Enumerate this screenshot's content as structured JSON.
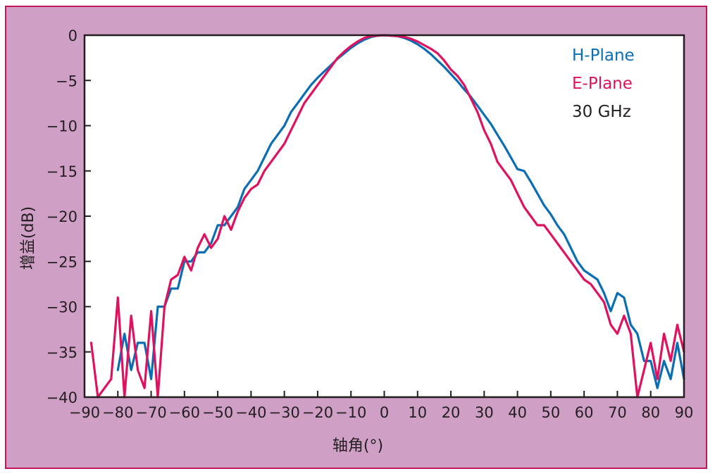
{
  "chart_data": {
    "type": "line",
    "title": "",
    "xlabel": "轴角(°)",
    "ylabel": "增益(dB)",
    "xlim": [
      -90,
      90
    ],
    "ylim": [
      -40,
      0
    ],
    "x_ticks": [
      -90,
      -80,
      -70,
      -60,
      -50,
      -40,
      -30,
      -20,
      -10,
      0,
      10,
      20,
      30,
      40,
      50,
      60,
      70,
      80,
      90
    ],
    "x_tick_labels": [
      "−90",
      "−80",
      "−70",
      "−60",
      "−50",
      "−40",
      "−30",
      "−20",
      "−10",
      "0",
      "10",
      "20",
      "30",
      "40",
      "50",
      "60",
      "70",
      "80",
      "90"
    ],
    "y_ticks": [
      0,
      -5,
      -10,
      -15,
      -20,
      -25,
      -30,
      -35,
      -40
    ],
    "y_tick_labels": [
      "0",
      "−5",
      "−10",
      "−15",
      "−20",
      "−25",
      "−30",
      "−35",
      "−40"
    ],
    "grid": false,
    "legend_position": "top-right",
    "annotation": "30 GHz",
    "series": [
      {
        "name": "H-Plane",
        "color": "#0a6eb4",
        "points": [
          [
            -80,
            -37
          ],
          [
            -78,
            -33
          ],
          [
            -76,
            -37
          ],
          [
            -74,
            -34
          ],
          [
            -72,
            -34
          ],
          [
            -70,
            -38
          ],
          [
            -68,
            -30
          ],
          [
            -66,
            -30
          ],
          [
            -64,
            -28
          ],
          [
            -62,
            -28
          ],
          [
            -60,
            -25
          ],
          [
            -58,
            -25
          ],
          [
            -56,
            -24
          ],
          [
            -54,
            -24
          ],
          [
            -52,
            -23
          ],
          [
            -50,
            -21
          ],
          [
            -48,
            -21
          ],
          [
            -46,
            -20
          ],
          [
            -44,
            -19
          ],
          [
            -42,
            -17
          ],
          [
            -40,
            -16
          ],
          [
            -38,
            -15
          ],
          [
            -36,
            -13.5
          ],
          [
            -34,
            -12
          ],
          [
            -32,
            -11
          ],
          [
            -30,
            -10
          ],
          [
            -28,
            -8.5
          ],
          [
            -26,
            -7.5
          ],
          [
            -24,
            -6.5
          ],
          [
            -22,
            -5.5
          ],
          [
            -20,
            -4.7
          ],
          [
            -18,
            -4
          ],
          [
            -16,
            -3.3
          ],
          [
            -14,
            -2.6
          ],
          [
            -12,
            -2
          ],
          [
            -10,
            -1.4
          ],
          [
            -8,
            -0.9
          ],
          [
            -6,
            -0.5
          ],
          [
            -4,
            -0.2
          ],
          [
            -2,
            -0.05
          ],
          [
            0,
            0
          ],
          [
            2,
            -0.05
          ],
          [
            4,
            -0.1
          ],
          [
            6,
            -0.3
          ],
          [
            8,
            -0.6
          ],
          [
            10,
            -1
          ],
          [
            12,
            -1.5
          ],
          [
            14,
            -2.1
          ],
          [
            16,
            -2.8
          ],
          [
            18,
            -3.5
          ],
          [
            20,
            -4.3
          ],
          [
            22,
            -5.1
          ],
          [
            24,
            -6
          ],
          [
            26,
            -6.8
          ],
          [
            28,
            -7.8
          ],
          [
            30,
            -8.8
          ],
          [
            32,
            -9.8
          ],
          [
            34,
            -11
          ],
          [
            36,
            -12.2
          ],
          [
            38,
            -13.5
          ],
          [
            40,
            -14.8
          ],
          [
            42,
            -15
          ],
          [
            44,
            -16.2
          ],
          [
            46,
            -17.5
          ],
          [
            48,
            -18.8
          ],
          [
            50,
            -19.8
          ],
          [
            52,
            -21
          ],
          [
            54,
            -22
          ],
          [
            56,
            -23.5
          ],
          [
            58,
            -25
          ],
          [
            60,
            -26
          ],
          [
            62,
            -26.5
          ],
          [
            64,
            -27
          ],
          [
            66,
            -28.5
          ],
          [
            68,
            -30.5
          ],
          [
            70,
            -28.5
          ],
          [
            72,
            -29
          ],
          [
            74,
            -32
          ],
          [
            76,
            -33
          ],
          [
            78,
            -36
          ],
          [
            80,
            -36
          ],
          [
            82,
            -39
          ],
          [
            84,
            -36
          ],
          [
            86,
            -38
          ],
          [
            88,
            -34
          ],
          [
            90,
            -38
          ]
        ]
      },
      {
        "name": "E-Plane",
        "color": "#e0115f",
        "points": [
          [
            -88,
            -34
          ],
          [
            -86,
            -40
          ],
          [
            -84,
            -39
          ],
          [
            -82,
            -38
          ],
          [
            -80,
            -29
          ],
          [
            -78,
            -40
          ],
          [
            -76,
            -31
          ],
          [
            -74,
            -37
          ],
          [
            -72,
            -39
          ],
          [
            -70,
            -30.5
          ],
          [
            -68,
            -40
          ],
          [
            -66,
            -30
          ],
          [
            -64,
            -27
          ],
          [
            -62,
            -26.5
          ],
          [
            -60,
            -24.5
          ],
          [
            -58,
            -26
          ],
          [
            -56,
            -23.5
          ],
          [
            -54,
            -22
          ],
          [
            -52,
            -23.5
          ],
          [
            -50,
            -22.5
          ],
          [
            -48,
            -20
          ],
          [
            -46,
            -21.5
          ],
          [
            -44,
            -19.5
          ],
          [
            -42,
            -18
          ],
          [
            -40,
            -17
          ],
          [
            -38,
            -16.5
          ],
          [
            -36,
            -15
          ],
          [
            -34,
            -14
          ],
          [
            -32,
            -13
          ],
          [
            -30,
            -12
          ],
          [
            -28,
            -10.5
          ],
          [
            -26,
            -9
          ],
          [
            -24,
            -7.5
          ],
          [
            -22,
            -6.5
          ],
          [
            -20,
            -5.5
          ],
          [
            -18,
            -4.5
          ],
          [
            -16,
            -3.5
          ],
          [
            -14,
            -2.5
          ],
          [
            -12,
            -1.8
          ],
          [
            -10,
            -1.2
          ],
          [
            -8,
            -0.7
          ],
          [
            -6,
            -0.3
          ],
          [
            -4,
            -0.1
          ],
          [
            -2,
            -0.05
          ],
          [
            0,
            0
          ],
          [
            2,
            -0.05
          ],
          [
            4,
            -0.1
          ],
          [
            6,
            -0.2
          ],
          [
            8,
            -0.4
          ],
          [
            10,
            -0.7
          ],
          [
            12,
            -1.1
          ],
          [
            14,
            -1.5
          ],
          [
            16,
            -2
          ],
          [
            18,
            -2.8
          ],
          [
            20,
            -3.8
          ],
          [
            22,
            -4.5
          ],
          [
            24,
            -5.5
          ],
          [
            26,
            -7
          ],
          [
            28,
            -8.5
          ],
          [
            30,
            -10.5
          ],
          [
            32,
            -12
          ],
          [
            34,
            -14
          ],
          [
            36,
            -15
          ],
          [
            38,
            -16
          ],
          [
            40,
            -17.5
          ],
          [
            42,
            -19
          ],
          [
            44,
            -20
          ],
          [
            46,
            -21
          ],
          [
            48,
            -21
          ],
          [
            50,
            -22
          ],
          [
            52,
            -23
          ],
          [
            54,
            -24
          ],
          [
            56,
            -25
          ],
          [
            58,
            -26
          ],
          [
            60,
            -27
          ],
          [
            62,
            -27.5
          ],
          [
            64,
            -28.5
          ],
          [
            66,
            -29.5
          ],
          [
            68,
            -32
          ],
          [
            70,
            -33
          ],
          [
            72,
            -31
          ],
          [
            74,
            -33
          ],
          [
            76,
            -40
          ],
          [
            78,
            -37
          ],
          [
            80,
            -34
          ],
          [
            82,
            -38
          ],
          [
            84,
            -33
          ],
          [
            86,
            -36
          ],
          [
            88,
            -32
          ],
          [
            90,
            -35
          ]
        ]
      }
    ]
  },
  "legend": {
    "items": [
      {
        "label": "H-Plane",
        "color": "#0a6eb4"
      },
      {
        "label": "E-Plane",
        "color": "#e0115f"
      },
      {
        "label": "30 GHz",
        "color": "#231f20"
      }
    ]
  },
  "colors": {
    "background": "#cf9fc6",
    "border": "#c2185b",
    "plot_area": "#ffffff",
    "axis": "#231f20"
  }
}
